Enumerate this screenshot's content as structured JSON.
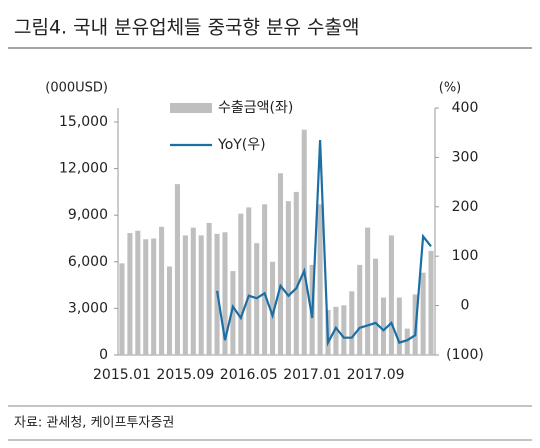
{
  "title": "그림4. 국내 분유업체들 중국향 분유 수출액",
  "source": "자료: 관세청, 케이프투자증권",
  "chart_data": {
    "type": "bar_line",
    "y_label": "(000USD)",
    "y2_label": "(%)",
    "categories": [
      "2015.01",
      null,
      null,
      null,
      null,
      null,
      null,
      null,
      "2015.09",
      null,
      null,
      null,
      null,
      null,
      null,
      null,
      "2016.05",
      null,
      null,
      null,
      null,
      null,
      null,
      null,
      "2017.01",
      null,
      null,
      null,
      null,
      null,
      null,
      null,
      "2017.09",
      null,
      null,
      null,
      null,
      null,
      null,
      null
    ],
    "series": [
      {
        "name": "수출금액(좌)",
        "color": "#bfbfbf",
        "axis": "y",
        "values": [
          5900,
          7850,
          8000,
          7450,
          7500,
          8250,
          5700,
          11000,
          7700,
          8200,
          7700,
          8500,
          7800,
          7900,
          5400,
          9100,
          9500,
          7200,
          9700,
          6000,
          11700,
          9900,
          10500,
          14500,
          5800,
          9700,
          2900,
          3100,
          3200,
          4100,
          5800,
          8200,
          6200,
          3700,
          7700,
          3700,
          1700,
          3900,
          5300,
          6700
        ]
      },
      {
        "name": "YoY(우)",
        "color": "#1c6ea4",
        "axis": "y2",
        "values": [
          null,
          null,
          null,
          null,
          null,
          null,
          null,
          null,
          null,
          null,
          null,
          null,
          30,
          -70,
          -2,
          -25,
          20,
          15,
          25,
          -20,
          40,
          20,
          35,
          70,
          -25,
          335,
          -75,
          -45,
          -65,
          -65,
          -45,
          -40,
          -35,
          -50,
          -35,
          -75,
          -70,
          -60,
          140,
          120
        ]
      }
    ],
    "ylim": [
      0,
      15900
    ],
    "yticks": [
      0,
      {
        "value": 3000,
        "label": "3,000"
      },
      {
        "value": 6000,
        "label": "6,000"
      },
      {
        "value": 9000,
        "label": "9,000"
      },
      {
        "value": 12000,
        "label": "12,000"
      },
      {
        "value": 15000,
        "label": "15,000"
      }
    ],
    "y2lim": [
      -100,
      400
    ],
    "y2ticks": [
      {
        "value": -100,
        "label": "(100)"
      },
      0,
      100,
      200,
      300,
      400
    ]
  }
}
